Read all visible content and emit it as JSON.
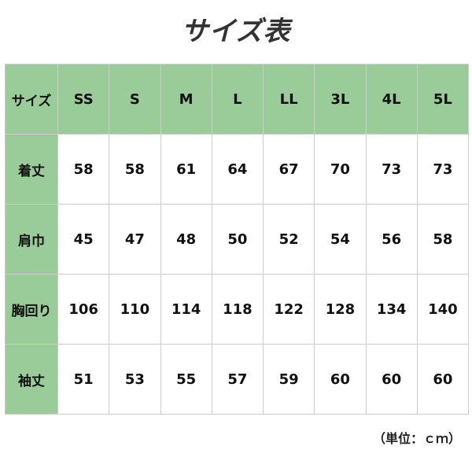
{
  "title": "サイズ表",
  "header": {
    "label": "サイズ",
    "sizes": [
      "SS",
      "S",
      "M",
      "L",
      "LL",
      "3L",
      "4L",
      "5L"
    ]
  },
  "rows": [
    {
      "label": "着丈",
      "values": [
        "58",
        "58",
        "61",
        "64",
        "67",
        "70",
        "73",
        "73"
      ]
    },
    {
      "label": "肩巾",
      "values": [
        "45",
        "47",
        "48",
        "50",
        "52",
        "54",
        "56",
        "58"
      ]
    },
    {
      "label": "胸回り",
      "values": [
        "106",
        "110",
        "114",
        "118",
        "122",
        "128",
        "134",
        "140"
      ]
    },
    {
      "label": "袖丈",
      "values": [
        "51",
        "53",
        "55",
        "57",
        "59",
        "60",
        "60",
        "60"
      ]
    }
  ],
  "unit": "（単位：ｃｍ）",
  "colors": {
    "header_bg": "#99cc99",
    "border": "#cccccc"
  }
}
